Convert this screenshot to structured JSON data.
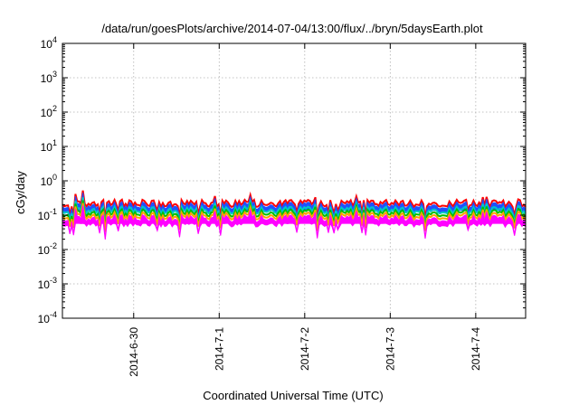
{
  "chart_data": {
    "type": "area",
    "title": "/data/run/goesPlots/archive/2014-07-04/13:00/flux/../bryn/5daysEarth.plot",
    "xlabel": "Coordinated Universal Time (UTC)",
    "ylabel": "cGy/day",
    "yscale": "log",
    "ylim": [
      0.0001,
      10000
    ],
    "xlim": [
      "2014-06-29 04:00",
      "2014-07-04 14:00"
    ],
    "grid": true,
    "yticks": [
      {
        "value": 0.0001,
        "base": "10",
        "exp": "-4"
      },
      {
        "value": 0.001,
        "base": "10",
        "exp": "-3"
      },
      {
        "value": 0.01,
        "base": "10",
        "exp": "-2"
      },
      {
        "value": 0.1,
        "base": "10",
        "exp": "-1"
      },
      {
        "value": 1,
        "base": "10",
        "exp": "0"
      },
      {
        "value": 10,
        "base": "10",
        "exp": "1"
      },
      {
        "value": 100,
        "base": "10",
        "exp": "2"
      },
      {
        "value": 1000,
        "base": "10",
        "exp": "3"
      },
      {
        "value": 10000,
        "base": "10",
        "exp": "4"
      }
    ],
    "xticks": [
      {
        "date": "2014-06-30 00:00",
        "label": "2014-6-30"
      },
      {
        "date": "2014-07-01 00:00",
        "label": "2014-7-1"
      },
      {
        "date": "2014-07-02 00:00",
        "label": "2014-7-2"
      },
      {
        "date": "2014-07-03 00:00",
        "label": "2014-7-3"
      },
      {
        "date": "2014-07-04 00:00",
        "label": "2014-7-4"
      }
    ],
    "series": [
      {
        "color": "#ff0000",
        "level": 0.22,
        "style": "line"
      },
      {
        "color": "#2050ff",
        "level": 0.19,
        "style": "area"
      },
      {
        "color": "#00c8c8",
        "level": 0.14,
        "style": "line"
      },
      {
        "color": "#00c000",
        "level": 0.115,
        "style": "line"
      },
      {
        "color": "#ffa000",
        "level": 0.095,
        "style": "line"
      },
      {
        "color": "#ff00ff",
        "level": 0.08,
        "style": "area"
      }
    ]
  }
}
